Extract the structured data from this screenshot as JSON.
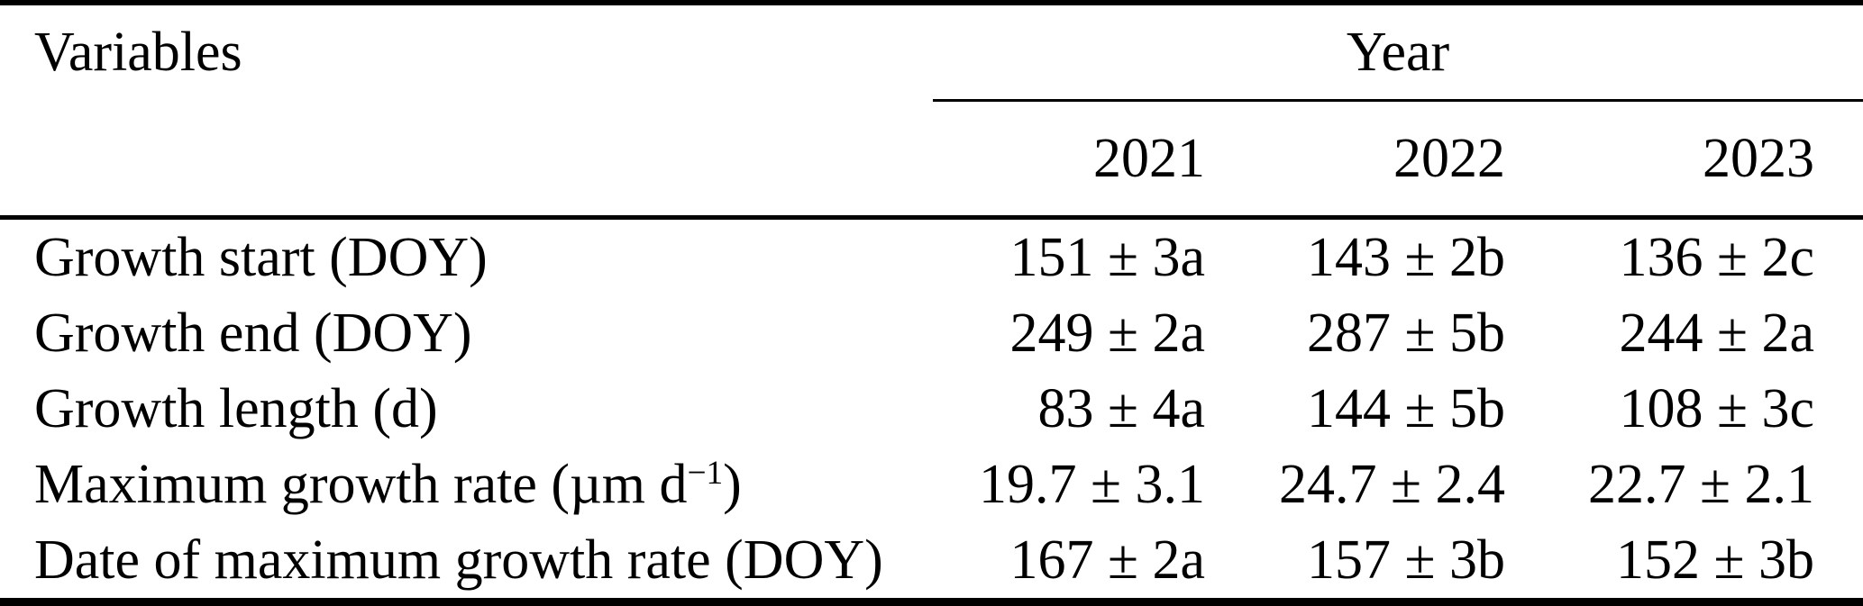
{
  "table": {
    "header": {
      "variables_label": "Variables",
      "year_group_label": "Year",
      "year_columns": [
        "2021",
        "2022",
        "2023"
      ]
    },
    "rows": [
      {
        "label": "Growth start (DOY)",
        "values": [
          "151 ± 3a",
          "143 ± 2b",
          "136 ± 2c"
        ]
      },
      {
        "label": "Growth end (DOY)",
        "values": [
          "249 ± 2a",
          "287 ± 5b",
          "244 ± 2a"
        ]
      },
      {
        "label": "Growth length (d)",
        "values": [
          "83 ± 4a",
          "144 ± 5b",
          "108 ± 3c"
        ]
      },
      {
        "label_parts": {
          "prefix": "Maximum growth rate (µm d",
          "superscript": "−1",
          "suffix": ")"
        },
        "values": [
          "19.7 ± 3.1",
          "24.7 ± 2.4",
          "22.7 ± 2.1"
        ]
      },
      {
        "label": "Date of maximum growth rate (DOY)",
        "values": [
          "167 ± 2a",
          "157 ± 3b",
          "152 ± 3b"
        ]
      }
    ]
  },
  "chart_data": {
    "type": "table",
    "column_group": {
      "label": "Year",
      "columns": [
        "2021",
        "2022",
        "2023"
      ]
    },
    "columns": [
      "Variables",
      "2021",
      "2022",
      "2023"
    ],
    "rows": [
      [
        "Growth start (DOY)",
        "151 ± 3a",
        "143 ± 2b",
        "136 ± 2c"
      ],
      [
        "Growth end (DOY)",
        "249 ± 2a",
        "287 ± 5b",
        "244 ± 2a"
      ],
      [
        "Growth length (d)",
        "83 ± 4a",
        "144 ± 5b",
        "108 ± 3c"
      ],
      [
        "Maximum growth rate (µm d−1)",
        "19.7 ± 3.1",
        "24.7 ± 2.4",
        "22.7 ± 2.1"
      ],
      [
        "Date of maximum growth rate (DOY)",
        "167 ± 2a",
        "157 ± 3b",
        "152 ± 3b"
      ]
    ]
  },
  "colors": {
    "text": "#000000",
    "background": "#ffffff",
    "rule": "#000000"
  }
}
